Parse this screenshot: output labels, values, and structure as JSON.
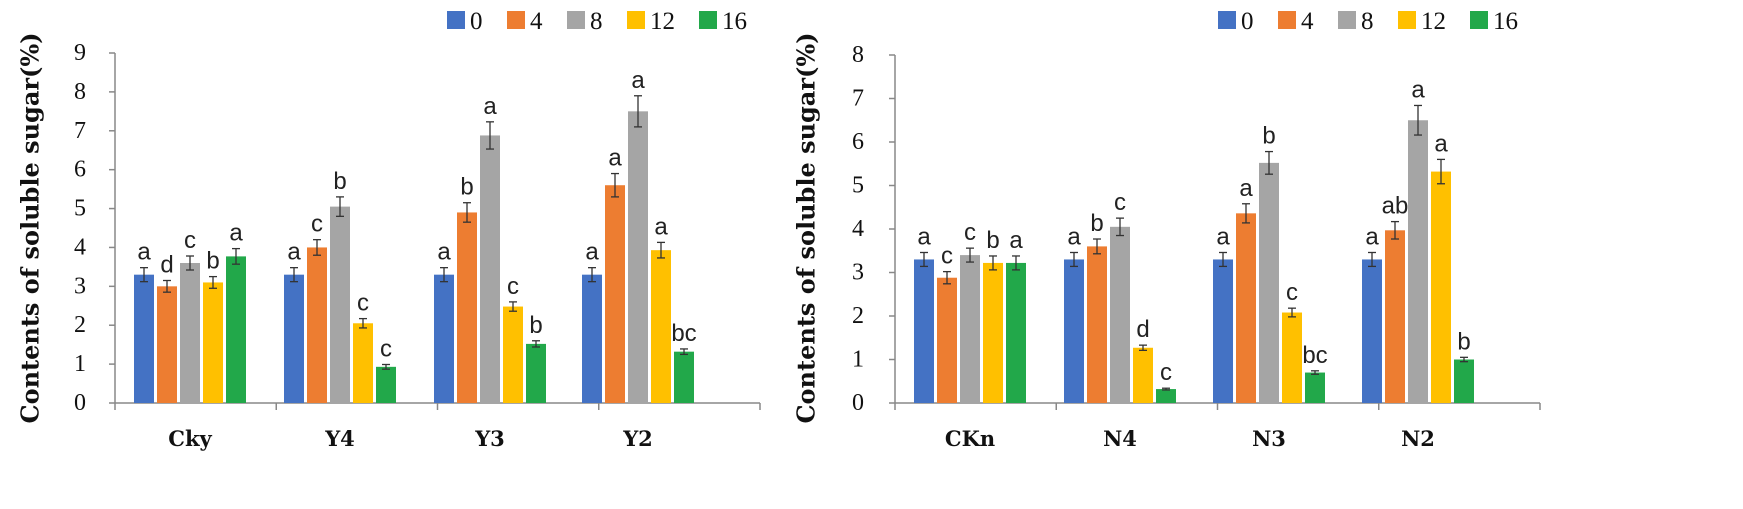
{
  "chart_data": [
    {
      "type": "bar",
      "title": "",
      "xlabel": "",
      "ylabel": "Contents of soluble sugar(%)",
      "ylim": [
        0,
        9
      ],
      "yticks": [
        "0",
        "1",
        "2",
        "3",
        "4",
        "5",
        "6",
        "7",
        "8",
        "9"
      ],
      "categories": [
        "Cky",
        "Y4",
        "Y3",
        "Y2"
      ],
      "legend_position": "top-right",
      "series": [
        {
          "name": "0",
          "color": "#4472C4",
          "values": [
            3.3,
            3.3,
            3.3,
            3.3
          ],
          "errors": [
            0.18,
            0.18,
            0.18,
            0.18
          ],
          "labels": [
            "a",
            "a",
            "a",
            "a"
          ]
        },
        {
          "name": "4",
          "color": "#ED7D31",
          "values": [
            3.0,
            4.0,
            4.9,
            5.6
          ],
          "errors": [
            0.15,
            0.2,
            0.25,
            0.3
          ],
          "labels": [
            "d",
            "c",
            "b",
            "a"
          ]
        },
        {
          "name": "8",
          "color": "#A5A5A5",
          "values": [
            3.6,
            5.05,
            6.88,
            7.5
          ],
          "errors": [
            0.18,
            0.25,
            0.35,
            0.4
          ],
          "labels": [
            "c",
            "b",
            "a",
            "a"
          ]
        },
        {
          "name": "12",
          "color": "#FFC000",
          "values": [
            3.1,
            2.05,
            2.48,
            3.93
          ],
          "errors": [
            0.15,
            0.12,
            0.12,
            0.2
          ],
          "labels": [
            "b",
            "c",
            "c",
            "a"
          ]
        },
        {
          "name": "16",
          "color": "#22A84A",
          "values": [
            3.77,
            0.93,
            1.52,
            1.32
          ],
          "errors": [
            0.2,
            0.06,
            0.08,
            0.07
          ],
          "labels": [
            "a",
            "c",
            "b",
            "bc"
          ]
        }
      ]
    },
    {
      "type": "bar",
      "title": "",
      "xlabel": "",
      "ylabel": "Contents of soluble sugar(%)",
      "ylim": [
        0,
        8
      ],
      "yticks": [
        "0",
        "1",
        "2",
        "3",
        "4",
        "5",
        "6",
        "7",
        "8"
      ],
      "categories": [
        "CKn",
        "N4",
        "N3",
        "N2"
      ],
      "legend_position": "top-right",
      "series": [
        {
          "name": "0",
          "color": "#4472C4",
          "values": [
            3.3,
            3.3,
            3.3,
            3.3
          ],
          "errors": [
            0.16,
            0.16,
            0.16,
            0.16
          ],
          "labels": [
            "a",
            "a",
            "a",
            "a"
          ]
        },
        {
          "name": "4",
          "color": "#ED7D31",
          "values": [
            2.88,
            3.6,
            4.36,
            3.97
          ],
          "errors": [
            0.14,
            0.17,
            0.22,
            0.2
          ],
          "labels": [
            "c",
            "b",
            "a",
            "ab"
          ]
        },
        {
          "name": "8",
          "color": "#A5A5A5",
          "values": [
            3.4,
            4.05,
            5.52,
            6.5
          ],
          "errors": [
            0.16,
            0.2,
            0.26,
            0.34
          ],
          "labels": [
            "c",
            "c",
            "b",
            "a"
          ]
        },
        {
          "name": "12",
          "color": "#FFC000",
          "values": [
            3.22,
            1.27,
            2.08,
            5.32
          ],
          "errors": [
            0.16,
            0.06,
            0.1,
            0.28
          ],
          "labels": [
            "b",
            "d",
            "c",
            "a"
          ]
        },
        {
          "name": "16",
          "color": "#22A84A",
          "values": [
            3.22,
            0.32,
            0.7,
            1.0
          ],
          "errors": [
            0.16,
            0.02,
            0.04,
            0.05
          ],
          "labels": [
            "a",
            "c",
            "bc",
            "b"
          ]
        }
      ]
    }
  ]
}
